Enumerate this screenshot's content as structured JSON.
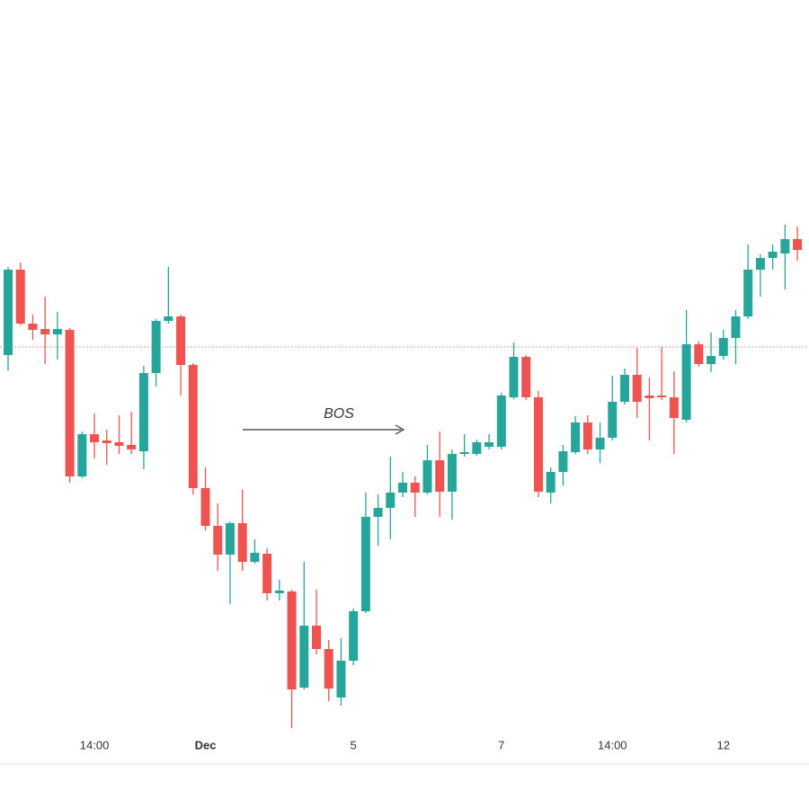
{
  "chart_data": {
    "type": "candlestick",
    "annotation": "BOS",
    "categories": [
      null,
      null,
      null,
      null,
      null,
      null,
      null,
      "14:00",
      null,
      null,
      null,
      null,
      null,
      null,
      null,
      null,
      "Dec",
      null,
      null,
      null,
      null,
      null,
      null,
      null,
      null,
      null,
      null,
      null,
      "5",
      null,
      null,
      null,
      null,
      null,
      null,
      null,
      null,
      null,
      null,
      null,
      "7",
      null,
      null,
      null,
      null,
      null,
      null,
      null,
      null,
      "14:00",
      null,
      null,
      null,
      null,
      null,
      null,
      null,
      null,
      "12",
      null,
      null,
      null,
      null,
      null,
      null
    ],
    "open": [
      455,
      550,
      490,
      484,
      478,
      483,
      320,
      367,
      360,
      358,
      355,
      348,
      435,
      493,
      498,
      444,
      307,
      265,
      233,
      268,
      225,
      234,
      190,
      192,
      85,
      154,
      128,
      74,
      115,
      170,
      275,
      285,
      302,
      313,
      302,
      338,
      303,
      345,
      345,
      353,
      353,
      408,
      453,
      408,
      302,
      325,
      347,
      380,
      350,
      363,
      403,
      433,
      410,
      410,
      408,
      383,
      467,
      445,
      454,
      474,
      498,
      550,
      563,
      568,
      584
    ],
    "high": [
      553,
      558,
      500,
      520,
      503,
      485,
      370,
      390,
      372,
      388,
      392,
      443,
      495,
      553,
      500,
      446,
      330,
      290,
      270,
      305,
      250,
      240,
      205,
      194,
      225,
      194,
      138,
      140,
      173,
      302,
      300,
      342,
      325,
      320,
      355,
      370,
      350,
      367,
      361,
      367,
      413,
      469,
      455,
      415,
      330,
      355,
      387,
      388,
      380,
      432,
      440,
      463,
      430,
      464,
      437,
      505,
      470,
      480,
      483,
      505,
      578,
      567,
      578,
      600,
      598
    ],
    "low": [
      438,
      488,
      472,
      445,
      450,
      313,
      318,
      340,
      333,
      345,
      345,
      328,
      420,
      490,
      410,
      300,
      260,
      215,
      178,
      215,
      223,
      182,
      182,
      40,
      83,
      122,
      70,
      65,
      110,
      168,
      243,
      250,
      297,
      275,
      300,
      275,
      272,
      342,
      343,
      350,
      350,
      406,
      405,
      297,
      290,
      310,
      345,
      345,
      335,
      360,
      400,
      385,
      360,
      405,
      345,
      380,
      442,
      436,
      450,
      445,
      495,
      520,
      550,
      528,
      560
    ],
    "close": [
      550,
      490,
      483,
      478,
      484,
      320,
      367,
      358,
      357,
      354,
      350,
      435,
      493,
      498,
      444,
      307,
      265,
      233,
      268,
      225,
      235,
      190,
      193,
      83,
      154,
      128,
      84,
      115,
      170,
      275,
      285,
      302,
      313,
      302,
      338,
      303,
      345,
      347,
      358,
      358,
      410,
      453,
      408,
      303,
      325,
      348,
      380,
      350,
      363,
      403,
      433,
      403,
      407,
      408,
      385,
      467,
      445,
      454,
      474,
      498,
      550,
      563,
      570,
      584,
      572
    ],
    "up_color": "#26a69a",
    "down_color": "#ef5350",
    "hline": 464,
    "ylim": [
      0,
      850
    ]
  }
}
